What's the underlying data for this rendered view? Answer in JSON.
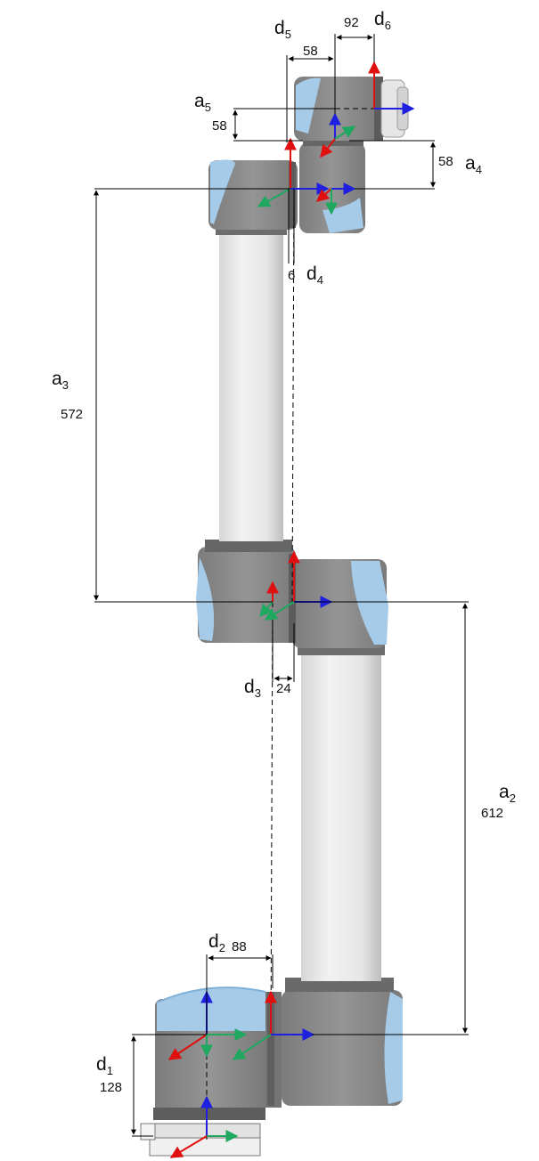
{
  "colors": {
    "body_grey": "#8d8d8d",
    "body_dark": "#6e6e6e",
    "cap_blue": "#9fc7e6",
    "cap_blue_dark": "#7fb0d8",
    "tube_light": "#ececec",
    "tube_mid": "#cfcfcf",
    "axis_x": "#1f1fe0",
    "axis_y": "#1fa85f",
    "axis_z": "#e01010",
    "dimension_line": "#000000"
  },
  "labels": {
    "d1": {
      "sym": "d",
      "sub": "1",
      "value": "128"
    },
    "d2": {
      "sym": "d",
      "sub": "2",
      "value": "88"
    },
    "d3": {
      "sym": "d",
      "sub": "3",
      "value": "24"
    },
    "d4": {
      "sym": "d",
      "sub": "4",
      "value": "6"
    },
    "d5": {
      "sym": "d",
      "sub": "5",
      "value": "58"
    },
    "d6": {
      "sym": "d",
      "sub": "6",
      "value": "92"
    },
    "a2": {
      "sym": "a",
      "sub": "2",
      "value": "612"
    },
    "a3": {
      "sym": "a",
      "sub": "3",
      "value": "572"
    },
    "a4": {
      "sym": "a",
      "sub": "4",
      "value": "58"
    },
    "a5": {
      "sym": "a",
      "sub": "5",
      "value": "58"
    }
  }
}
